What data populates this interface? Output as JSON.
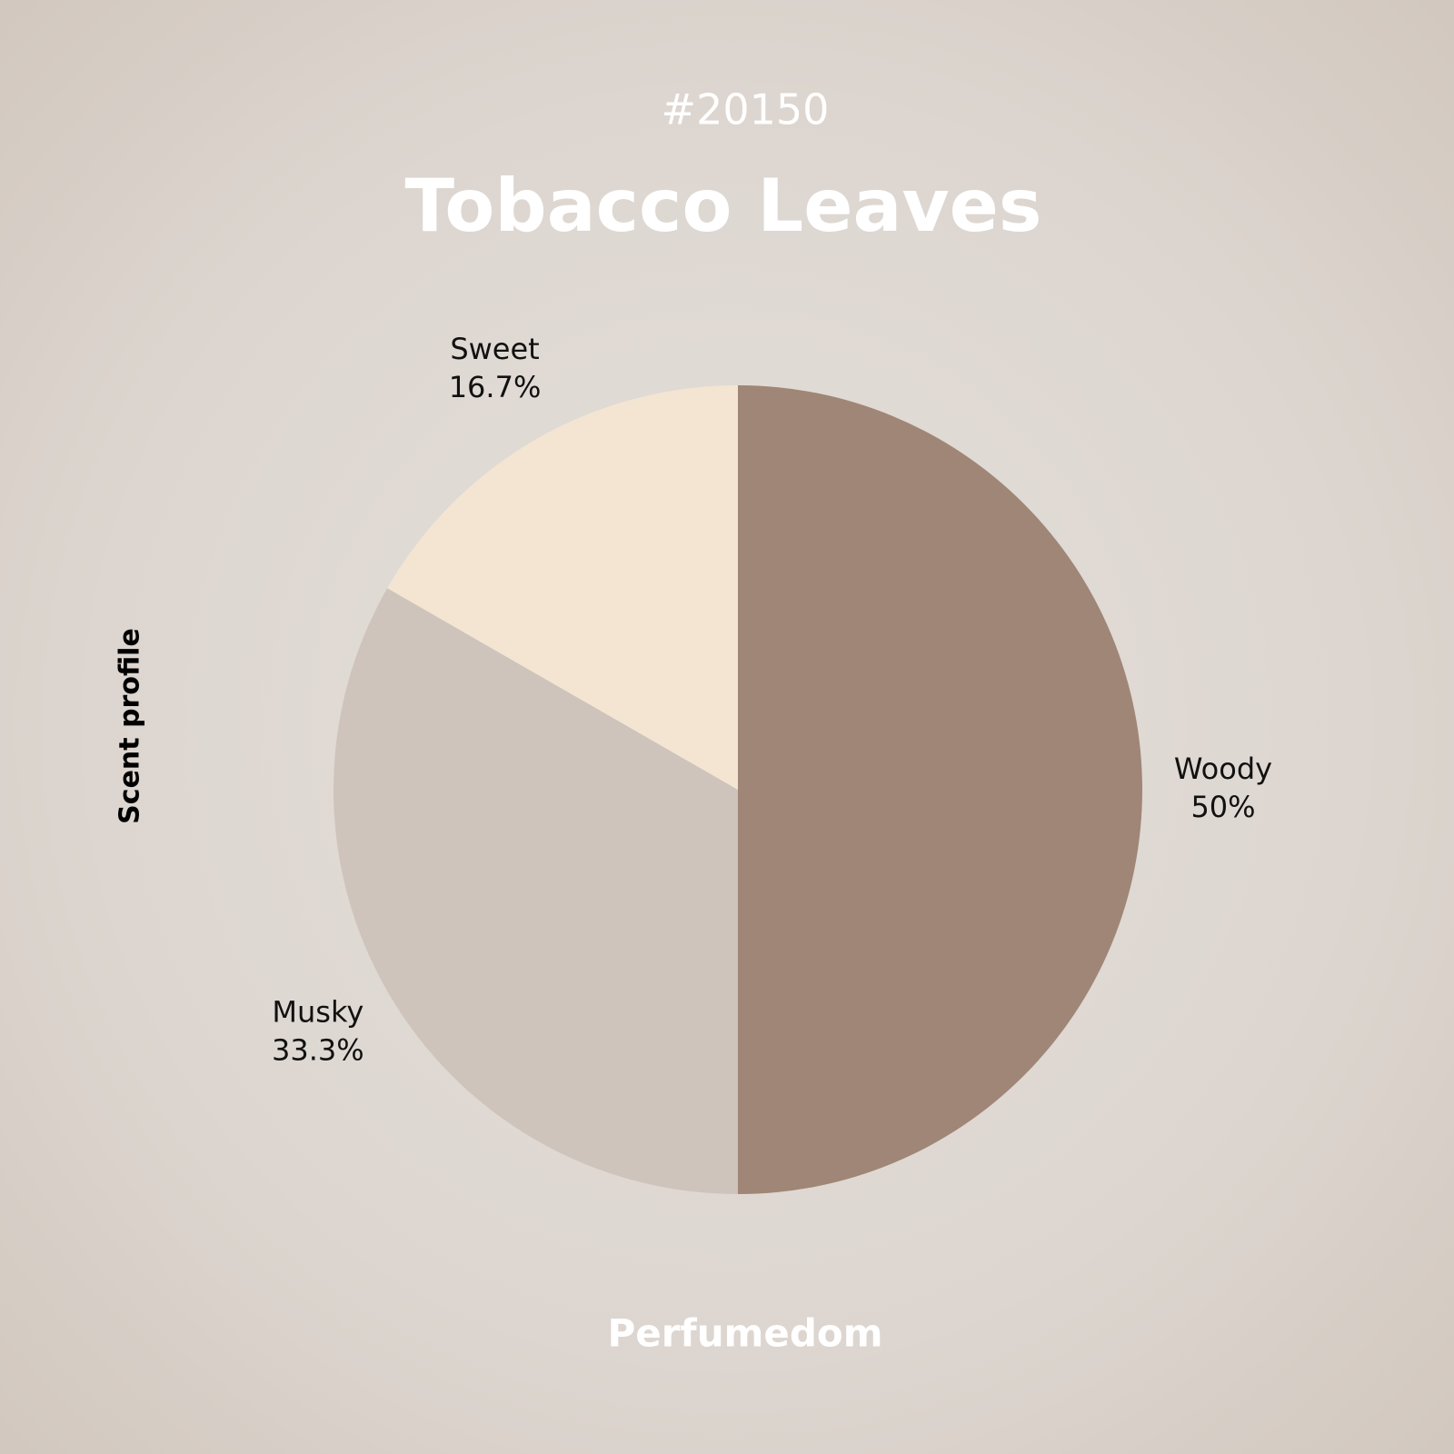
{
  "chart_data": {
    "type": "pie",
    "subtitle": "#20150",
    "title": "Tobacco Leaves",
    "y_label": "Scent profile",
    "footer": "Perfumedom",
    "categories": [
      "Woody",
      "Musky",
      "Sweet"
    ],
    "values": [
      50,
      33.3,
      16.7
    ],
    "value_labels": [
      "50%",
      "33.3%",
      "16.7%"
    ],
    "colors": [
      "#9f8676",
      "#cec4bb",
      "#f4e5d3"
    ]
  }
}
